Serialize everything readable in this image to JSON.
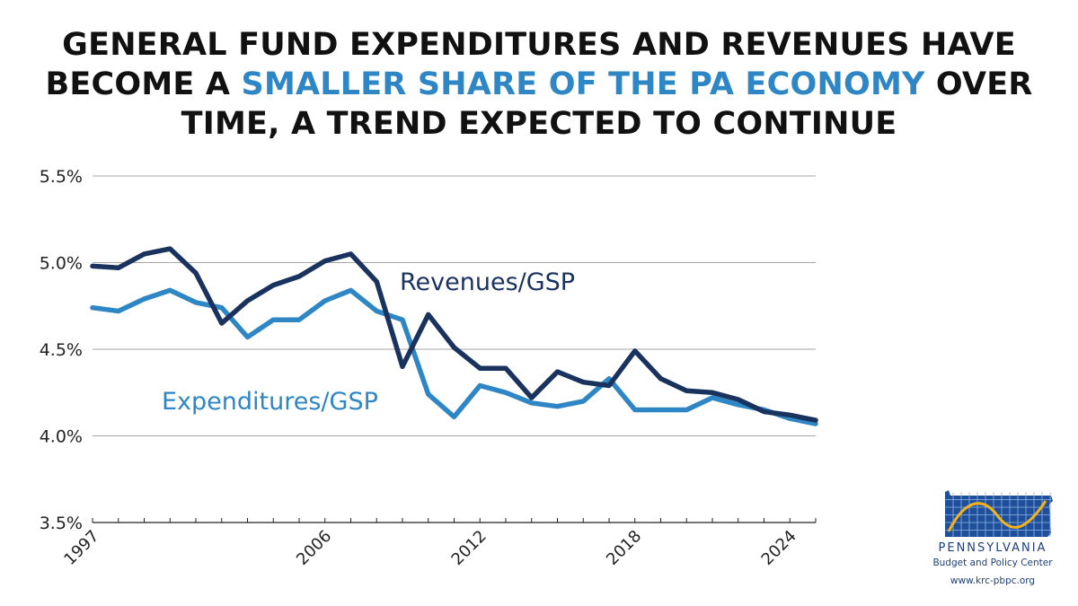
{
  "title": {
    "part1": "General Fund Expenditures and Revenues Have Become a ",
    "highlight": "Smaller Share of the PA Economy",
    "part2": " Over Time, a Trend Expected to Continue"
  },
  "colors": {
    "revenues": "#1a335e",
    "expenditures": "#2e86c4",
    "grid": "#a6a6a6",
    "highlight": "#2e86c4"
  },
  "chart_data": {
    "type": "line",
    "title": "General Fund Expenditures and Revenues Have Become a Smaller Share of the PA Economy Over Time, a Trend Expected to Continue",
    "xlabel": "",
    "ylabel": "",
    "ylim": [
      3.5,
      5.5
    ],
    "yticks": [
      3.5,
      4.0,
      4.5,
      5.0,
      5.5
    ],
    "ytick_labels": [
      "3.5%",
      "4.0%",
      "4.5%",
      "5.0%",
      "5.5%"
    ],
    "xlim": [
      1997,
      2025
    ],
    "xtick_labels": [
      "1997",
      "2006",
      "2012",
      "2018",
      "2024"
    ],
    "xticks": [
      1997,
      2006,
      2012,
      2018,
      2024
    ],
    "grid": true,
    "x": [
      1997,
      1998,
      1999,
      2000,
      2001,
      2002,
      2003,
      2004,
      2005,
      2006,
      2007,
      2008,
      2009,
      2010,
      2011,
      2012,
      2013,
      2014,
      2015,
      2016,
      2017,
      2018,
      2019,
      2020,
      2021,
      2022,
      2023,
      2024,
      2025
    ],
    "series": [
      {
        "name": "Revenues/GSP",
        "values": [
          4.98,
          4.97,
          5.05,
          5.08,
          4.94,
          4.65,
          4.78,
          4.87,
          4.92,
          5.01,
          5.05,
          4.89,
          4.4,
          4.7,
          4.51,
          4.39,
          4.39,
          4.22,
          4.37,
          4.31,
          4.29,
          4.49,
          4.33,
          4.26,
          4.25,
          4.21,
          4.14,
          4.12,
          4.09
        ]
      },
      {
        "name": "Expenditures/GSP",
        "values": [
          4.74,
          4.72,
          4.79,
          4.84,
          4.77,
          4.74,
          4.57,
          4.67,
          4.67,
          4.78,
          4.84,
          4.72,
          4.67,
          4.24,
          4.11,
          4.29,
          4.25,
          4.19,
          4.17,
          4.2,
          4.33,
          4.15,
          4.15,
          4.15,
          4.22,
          4.18,
          4.15,
          4.1,
          4.07
        ]
      }
    ],
    "annotations": [
      {
        "text": "Revenues/GSP",
        "series": "Revenues/GSP"
      },
      {
        "text": "Expenditures/GSP",
        "series": "Expenditures/GSP"
      }
    ]
  },
  "logo": {
    "name": "PENNSYLVANIA",
    "subtitle": "Budget and Policy Center",
    "url": "www.krc-pbpc.org"
  }
}
